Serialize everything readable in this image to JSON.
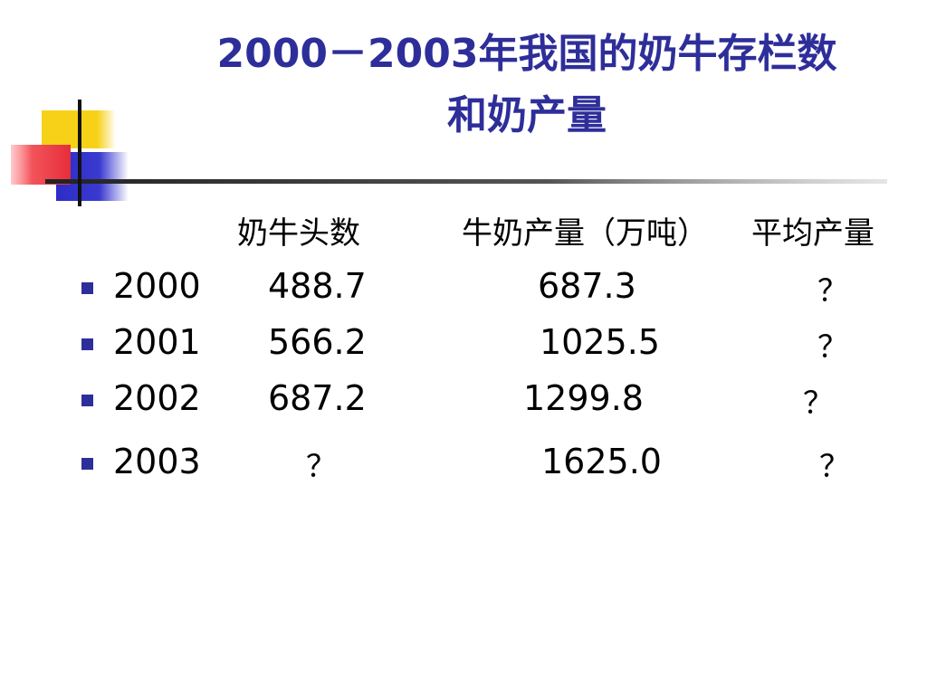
{
  "slide": {
    "title_line1": "2000－2003年我国的奶牛存栏数",
    "title_line2": "和奶产量",
    "headers": {
      "cow_count": "奶牛头数",
      "milk_output": "牛奶产量（万吨）",
      "avg_output": "平均产量"
    },
    "rows": [
      {
        "year": "2000",
        "cows": "488.7",
        "milk": "687.3",
        "avg": "？"
      },
      {
        "year": "2001",
        "cows": "566.2",
        "milk": "1025.5",
        "avg": "？"
      },
      {
        "year": "2002",
        "cows": "687.2",
        "milk": "1299.8",
        "avg": "？"
      },
      {
        "year": "2003",
        "cows": "？",
        "milk": "1625.0",
        "avg": "？"
      }
    ],
    "colors": {
      "title": "#2e2e9a",
      "bullet": "#2e2e9a",
      "deco_yellow": "#f7d117",
      "deco_red": "#f2545b",
      "deco_blue": "#3a3ad0"
    }
  }
}
